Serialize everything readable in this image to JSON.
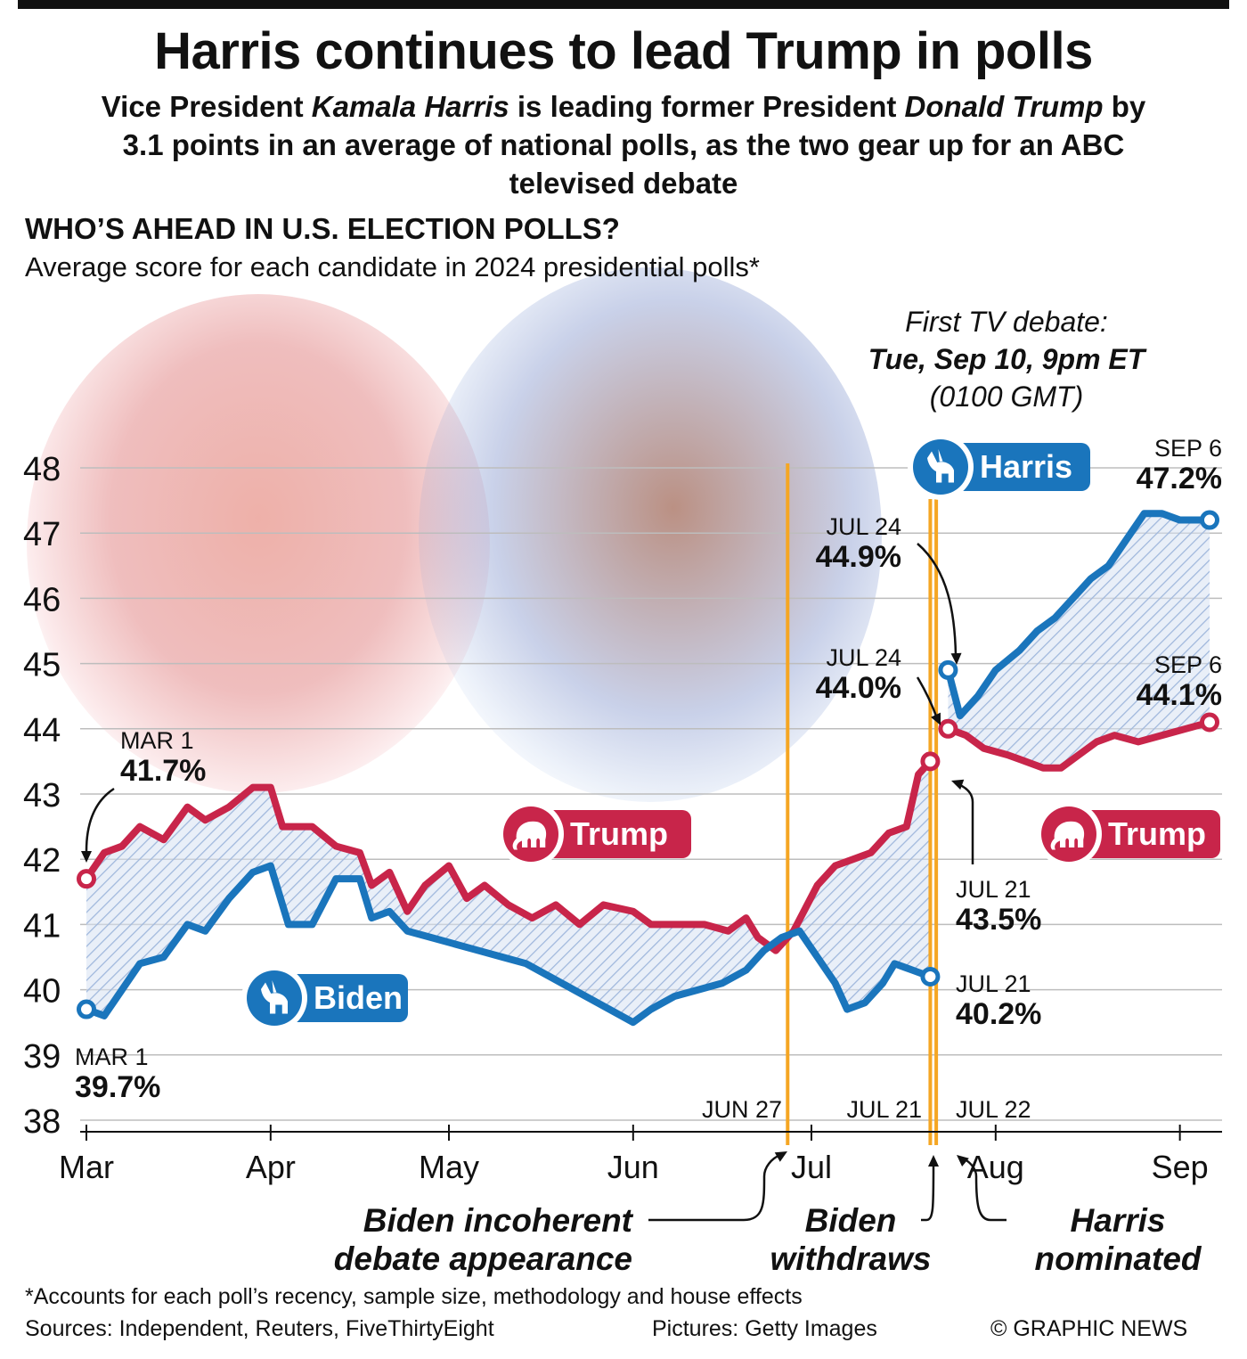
{
  "header": {
    "title": "Harris continues to lead Trump in polls",
    "subtitle_parts": [
      {
        "text": "Vice President ",
        "italic": false
      },
      {
        "text": "Kamala Harris",
        "italic": true
      },
      {
        "text": " is leading former President ",
        "italic": false
      },
      {
        "text": "Donald Trump",
        "italic": true
      },
      {
        "text": " by 3.1 points in an average of national polls, as the two gear up for an ABC televised debate",
        "italic": false
      }
    ]
  },
  "chart_heading": "WHO’S AHEAD IN U.S. ELECTION POLLS?",
  "chart_subheading": "Average score for each candidate in 2024 presidential polls*",
  "debate_note": {
    "line1": "First TV debate:",
    "line2": "Tue, Sep 10, 9pm ET",
    "line3": "(0100 GMT)"
  },
  "colors": {
    "trump": "#c8254a",
    "biden": "#1a75bc",
    "harris": "#1a75bc",
    "event_line": "#f5a623",
    "hatch": "#9fb7dc",
    "grid": "#bdbdbd"
  },
  "icons": [
    "elephant-icon",
    "donkey-icon"
  ],
  "chart_data": {
    "type": "line",
    "title": "WHO’S AHEAD IN U.S. ELECTION POLLS?",
    "subtitle": "Average score for each candidate in 2024 presidential polls*",
    "ylim": [
      38,
      48
    ],
    "y_ticks": [
      "38",
      "39",
      "40",
      "41",
      "42",
      "43",
      "44",
      "45",
      "46",
      "47",
      "48"
    ],
    "x_start": "2024-03-01",
    "x_end": "2024-09-06",
    "x_ticks": [
      {
        "date": "2024-03-01",
        "label": "Mar"
      },
      {
        "date": "2024-04-01",
        "label": "Apr"
      },
      {
        "date": "2024-05-01",
        "label": "May"
      },
      {
        "date": "2024-06-01",
        "label": "Jun"
      },
      {
        "date": "2024-07-01",
        "label": "Jul"
      },
      {
        "date": "2024-08-01",
        "label": "Aug"
      },
      {
        "date": "2024-09-01",
        "label": "Sep"
      }
    ],
    "grid": "horizontal",
    "series": [
      {
        "name": "Trump",
        "color": "#c8254a",
        "points": [
          [
            "2024-03-01",
            41.7
          ],
          [
            "2024-03-04",
            42.1
          ],
          [
            "2024-03-07",
            42.2
          ],
          [
            "2024-03-10",
            42.5
          ],
          [
            "2024-03-14",
            42.3
          ],
          [
            "2024-03-18",
            42.8
          ],
          [
            "2024-03-21",
            42.6
          ],
          [
            "2024-03-25",
            42.8
          ],
          [
            "2024-03-29",
            43.1
          ],
          [
            "2024-04-01",
            43.1
          ],
          [
            "2024-04-03",
            42.5
          ],
          [
            "2024-04-08",
            42.5
          ],
          [
            "2024-04-12",
            42.2
          ],
          [
            "2024-04-16",
            42.1
          ],
          [
            "2024-04-18",
            41.6
          ],
          [
            "2024-04-21",
            41.8
          ],
          [
            "2024-04-24",
            41.2
          ],
          [
            "2024-04-27",
            41.6
          ],
          [
            "2024-05-01",
            41.9
          ],
          [
            "2024-05-04",
            41.4
          ],
          [
            "2024-05-07",
            41.6
          ],
          [
            "2024-05-11",
            41.3
          ],
          [
            "2024-05-15",
            41.1
          ],
          [
            "2024-05-19",
            41.3
          ],
          [
            "2024-05-23",
            41.0
          ],
          [
            "2024-05-27",
            41.3
          ],
          [
            "2024-06-01",
            41.2
          ],
          [
            "2024-06-04",
            41.0
          ],
          [
            "2024-06-08",
            41.0
          ],
          [
            "2024-06-13",
            41.0
          ],
          [
            "2024-06-17",
            40.9
          ],
          [
            "2024-06-20",
            41.1
          ],
          [
            "2024-06-22",
            40.8
          ],
          [
            "2024-06-25",
            40.6
          ],
          [
            "2024-06-28",
            40.9
          ],
          [
            "2024-07-02",
            41.6
          ],
          [
            "2024-07-05",
            41.9
          ],
          [
            "2024-07-08",
            42.0
          ],
          [
            "2024-07-11",
            42.1
          ],
          [
            "2024-07-14",
            42.4
          ],
          [
            "2024-07-17",
            42.5
          ],
          [
            "2024-07-19",
            43.3
          ],
          [
            "2024-07-21",
            43.5
          ]
        ],
        "label_start": {
          "date": "MAR 1",
          "value": "41.7%"
        },
        "label_end": {
          "date": "JUL 21",
          "value": "43.5%"
        }
      },
      {
        "name": "Biden",
        "color": "#1a75bc",
        "points": [
          [
            "2024-03-01",
            39.7
          ],
          [
            "2024-03-04",
            39.6
          ],
          [
            "2024-03-07",
            40.0
          ],
          [
            "2024-03-10",
            40.4
          ],
          [
            "2024-03-14",
            40.5
          ],
          [
            "2024-03-18",
            41.0
          ],
          [
            "2024-03-21",
            40.9
          ],
          [
            "2024-03-25",
            41.4
          ],
          [
            "2024-03-29",
            41.8
          ],
          [
            "2024-04-01",
            41.9
          ],
          [
            "2024-04-04",
            41.0
          ],
          [
            "2024-04-08",
            41.0
          ],
          [
            "2024-04-12",
            41.7
          ],
          [
            "2024-04-16",
            41.7
          ],
          [
            "2024-04-18",
            41.1
          ],
          [
            "2024-04-21",
            41.2
          ],
          [
            "2024-04-24",
            40.9
          ],
          [
            "2024-04-28",
            40.8
          ],
          [
            "2024-05-02",
            40.7
          ],
          [
            "2024-05-06",
            40.6
          ],
          [
            "2024-05-10",
            40.5
          ],
          [
            "2024-05-14",
            40.4
          ],
          [
            "2024-05-18",
            40.2
          ],
          [
            "2024-05-22",
            40.0
          ],
          [
            "2024-05-26",
            39.8
          ],
          [
            "2024-06-01",
            39.5
          ],
          [
            "2024-06-04",
            39.7
          ],
          [
            "2024-06-08",
            39.9
          ],
          [
            "2024-06-12",
            40.0
          ],
          [
            "2024-06-16",
            40.1
          ],
          [
            "2024-06-20",
            40.3
          ],
          [
            "2024-06-23",
            40.6
          ],
          [
            "2024-06-26",
            40.8
          ],
          [
            "2024-06-29",
            40.9
          ],
          [
            "2024-07-02",
            40.5
          ],
          [
            "2024-07-05",
            40.1
          ],
          [
            "2024-07-07",
            39.7
          ],
          [
            "2024-07-10",
            39.8
          ],
          [
            "2024-07-13",
            40.1
          ],
          [
            "2024-07-15",
            40.4
          ],
          [
            "2024-07-18",
            40.3
          ],
          [
            "2024-07-21",
            40.2
          ]
        ],
        "label_start": {
          "date": "MAR 1",
          "value": "39.7%"
        },
        "label_end": {
          "date": "JUL 21",
          "value": "40.2%"
        }
      },
      {
        "name": "Harris",
        "color": "#1a75bc",
        "points": [
          [
            "2024-07-24",
            44.9
          ],
          [
            "2024-07-26",
            44.2
          ],
          [
            "2024-07-29",
            44.5
          ],
          [
            "2024-08-01",
            44.9
          ],
          [
            "2024-08-05",
            45.2
          ],
          [
            "2024-08-08",
            45.5
          ],
          [
            "2024-08-11",
            45.7
          ],
          [
            "2024-08-14",
            46.0
          ],
          [
            "2024-08-17",
            46.3
          ],
          [
            "2024-08-20",
            46.5
          ],
          [
            "2024-08-23",
            46.9
          ],
          [
            "2024-08-26",
            47.3
          ],
          [
            "2024-08-29",
            47.3
          ],
          [
            "2024-09-01",
            47.2
          ],
          [
            "2024-09-03",
            47.2
          ],
          [
            "2024-09-06",
            47.2
          ]
        ],
        "label_start": {
          "date": "JUL 24",
          "value": "44.9%"
        },
        "label_end": {
          "date": "SEP 6",
          "value": "47.2%"
        }
      },
      {
        "name": "Trump",
        "color": "#c8254a",
        "points": [
          [
            "2024-07-24",
            44.0
          ],
          [
            "2024-07-27",
            43.9
          ],
          [
            "2024-07-30",
            43.7
          ],
          [
            "2024-08-03",
            43.6
          ],
          [
            "2024-08-06",
            43.5
          ],
          [
            "2024-08-09",
            43.4
          ],
          [
            "2024-08-12",
            43.4
          ],
          [
            "2024-08-15",
            43.6
          ],
          [
            "2024-08-18",
            43.8
          ],
          [
            "2024-08-21",
            43.9
          ],
          [
            "2024-08-25",
            43.8
          ],
          [
            "2024-08-29",
            43.9
          ],
          [
            "2024-09-02",
            44.0
          ],
          [
            "2024-09-06",
            44.1
          ]
        ],
        "label_start": {
          "date": "JUL 24",
          "value": "44.0%"
        },
        "label_end": {
          "date": "SEP 6",
          "value": "44.1%"
        }
      }
    ],
    "events": [
      {
        "date": "2024-06-27",
        "label": "JUN 27",
        "note": "Biden incoherent debate appearance"
      },
      {
        "date": "2024-07-21",
        "label": "JUL 21",
        "note": "Biden withdraws"
      },
      {
        "date": "2024-07-22",
        "label": "JUL 22",
        "note": "Harris nominated"
      }
    ],
    "badges": [
      "Harris",
      "Trump",
      "Trump",
      "Biden"
    ]
  },
  "footer": {
    "note": "*Accounts for each poll’s recency, sample size, methodology and house effects",
    "sources": "Sources: Independent, Reuters, FiveThirtyEight",
    "pictures": "Pictures: Getty Images",
    "copyright": "© GRAPHIC NEWS"
  }
}
